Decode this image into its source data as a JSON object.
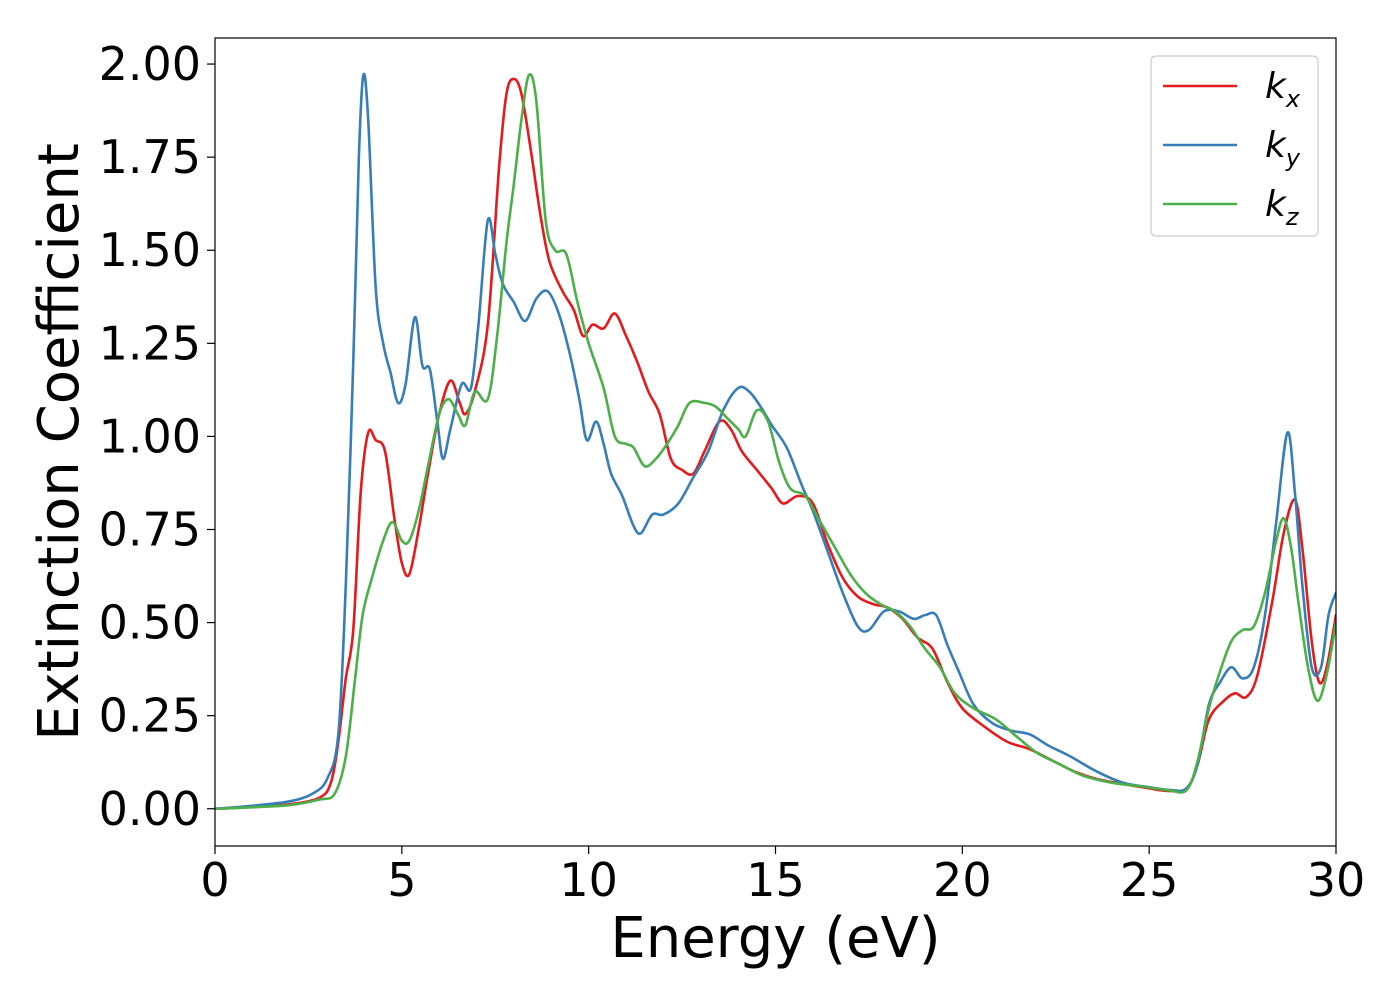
{
  "chart_data": {
    "type": "line",
    "title": "",
    "xlabel": "Energy (eV)",
    "ylabel": "Extinction Coefficient",
    "xlim": [
      0,
      30
    ],
    "ylim": [
      -0.1,
      2.07
    ],
    "xticks": [
      0,
      5,
      10,
      15,
      20,
      25,
      30
    ],
    "xtick_labels": [
      "0",
      "5",
      "10",
      "15",
      "20",
      "25",
      "30"
    ],
    "yticks": [
      0,
      0.25,
      0.5,
      0.75,
      1.0,
      1.25,
      1.5,
      1.75,
      2.0
    ],
    "ytick_labels": [
      "0.00",
      "0.25",
      "0.50",
      "0.75",
      "1.00",
      "1.25",
      "1.50",
      "1.75",
      "2.00"
    ],
    "grid": false,
    "legend_position": "top-right",
    "series": [
      {
        "name": "k",
        "subscript": "x",
        "color": "#e41a1c",
        "points": [
          [
            0,
            0
          ],
          [
            1,
            0.005
          ],
          [
            2,
            0.012
          ],
          [
            2.8,
            0.03
          ],
          [
            3.1,
            0.07
          ],
          [
            3.3,
            0.18
          ],
          [
            3.5,
            0.35
          ],
          [
            3.7,
            0.48
          ],
          [
            3.9,
            0.85
          ],
          [
            4.1,
            1.01
          ],
          [
            4.3,
            0.99
          ],
          [
            4.55,
            0.96
          ],
          [
            4.8,
            0.78
          ],
          [
            5.0,
            0.66
          ],
          [
            5.2,
            0.63
          ],
          [
            5.45,
            0.75
          ],
          [
            5.7,
            0.9
          ],
          [
            6.0,
            1.06
          ],
          [
            6.3,
            1.15
          ],
          [
            6.55,
            1.09
          ],
          [
            6.7,
            1.06
          ],
          [
            6.95,
            1.12
          ],
          [
            7.3,
            1.3
          ],
          [
            7.6,
            1.72
          ],
          [
            7.8,
            1.92
          ],
          [
            8.0,
            1.96
          ],
          [
            8.2,
            1.92
          ],
          [
            8.45,
            1.77
          ],
          [
            8.7,
            1.6
          ],
          [
            8.95,
            1.47
          ],
          [
            9.3,
            1.39
          ],
          [
            9.6,
            1.34
          ],
          [
            9.85,
            1.27
          ],
          [
            10.1,
            1.3
          ],
          [
            10.4,
            1.29
          ],
          [
            10.7,
            1.33
          ],
          [
            11.0,
            1.27
          ],
          [
            11.3,
            1.2
          ],
          [
            11.6,
            1.12
          ],
          [
            11.9,
            1.06
          ],
          [
            12.2,
            0.94
          ],
          [
            12.5,
            0.91
          ],
          [
            12.8,
            0.9
          ],
          [
            13.1,
            0.96
          ],
          [
            13.5,
            1.04
          ],
          [
            13.8,
            1.02
          ],
          [
            14.1,
            0.96
          ],
          [
            14.5,
            0.91
          ],
          [
            14.9,
            0.86
          ],
          [
            15.2,
            0.82
          ],
          [
            15.6,
            0.84
          ],
          [
            16.0,
            0.82
          ],
          [
            16.4,
            0.71
          ],
          [
            16.8,
            0.62
          ],
          [
            17.2,
            0.57
          ],
          [
            17.6,
            0.55
          ],
          [
            18.0,
            0.54
          ],
          [
            18.4,
            0.51
          ],
          [
            18.8,
            0.46
          ],
          [
            19.2,
            0.43
          ],
          [
            19.6,
            0.34
          ],
          [
            20.0,
            0.27
          ],
          [
            20.6,
            0.22
          ],
          [
            21.2,
            0.18
          ],
          [
            21.8,
            0.16
          ],
          [
            22.4,
            0.13
          ],
          [
            23.0,
            0.1
          ],
          [
            23.6,
            0.08
          ],
          [
            24.4,
            0.065
          ],
          [
            25.0,
            0.055
          ],
          [
            25.5,
            0.048
          ],
          [
            26.0,
            0.055
          ],
          [
            26.3,
            0.12
          ],
          [
            26.6,
            0.24
          ],
          [
            27.0,
            0.29
          ],
          [
            27.3,
            0.31
          ],
          [
            27.6,
            0.3
          ],
          [
            27.9,
            0.36
          ],
          [
            28.3,
            0.56
          ],
          [
            28.6,
            0.74
          ],
          [
            28.9,
            0.83
          ],
          [
            29.1,
            0.7
          ],
          [
            29.35,
            0.45
          ],
          [
            29.55,
            0.34
          ],
          [
            29.75,
            0.38
          ],
          [
            30.0,
            0.52
          ]
        ]
      },
      {
        "name": "k",
        "subscript": "y",
        "color": "#377eb8",
        "points": [
          [
            0,
            0
          ],
          [
            1,
            0.008
          ],
          [
            2,
            0.02
          ],
          [
            2.6,
            0.04
          ],
          [
            3.0,
            0.08
          ],
          [
            3.3,
            0.2
          ],
          [
            3.5,
            0.6
          ],
          [
            3.7,
            1.2
          ],
          [
            3.85,
            1.75
          ],
          [
            3.97,
            1.97
          ],
          [
            4.1,
            1.85
          ],
          [
            4.3,
            1.4
          ],
          [
            4.5,
            1.25
          ],
          [
            4.7,
            1.17
          ],
          [
            4.9,
            1.09
          ],
          [
            5.1,
            1.14
          ],
          [
            5.35,
            1.32
          ],
          [
            5.55,
            1.19
          ],
          [
            5.75,
            1.18
          ],
          [
            5.95,
            1.04
          ],
          [
            6.1,
            0.94
          ],
          [
            6.3,
            1.02
          ],
          [
            6.6,
            1.14
          ],
          [
            6.85,
            1.13
          ],
          [
            7.05,
            1.3
          ],
          [
            7.3,
            1.58
          ],
          [
            7.5,
            1.49
          ],
          [
            7.7,
            1.41
          ],
          [
            8.0,
            1.36
          ],
          [
            8.3,
            1.31
          ],
          [
            8.6,
            1.37
          ],
          [
            8.9,
            1.39
          ],
          [
            9.2,
            1.33
          ],
          [
            9.5,
            1.22
          ],
          [
            9.75,
            1.1
          ],
          [
            9.95,
            0.99
          ],
          [
            10.2,
            1.04
          ],
          [
            10.4,
            0.98
          ],
          [
            10.6,
            0.9
          ],
          [
            10.9,
            0.84
          ],
          [
            11.2,
            0.76
          ],
          [
            11.4,
            0.74
          ],
          [
            11.7,
            0.79
          ],
          [
            12.0,
            0.79
          ],
          [
            12.4,
            0.82
          ],
          [
            12.8,
            0.89
          ],
          [
            13.2,
            0.96
          ],
          [
            13.6,
            1.07
          ],
          [
            14.0,
            1.13
          ],
          [
            14.3,
            1.12
          ],
          [
            14.6,
            1.08
          ],
          [
            14.9,
            1.03
          ],
          [
            15.3,
            0.97
          ],
          [
            15.7,
            0.87
          ],
          [
            16.0,
            0.8
          ],
          [
            16.4,
            0.69
          ],
          [
            16.8,
            0.58
          ],
          [
            17.2,
            0.49
          ],
          [
            17.5,
            0.48
          ],
          [
            17.9,
            0.53
          ],
          [
            18.3,
            0.53
          ],
          [
            18.7,
            0.51
          ],
          [
            19.0,
            0.52
          ],
          [
            19.3,
            0.52
          ],
          [
            19.6,
            0.44
          ],
          [
            19.9,
            0.37
          ],
          [
            20.3,
            0.28
          ],
          [
            20.8,
            0.23
          ],
          [
            21.3,
            0.21
          ],
          [
            21.8,
            0.2
          ],
          [
            22.3,
            0.17
          ],
          [
            22.9,
            0.14
          ],
          [
            23.6,
            0.1
          ],
          [
            24.3,
            0.07
          ],
          [
            25.0,
            0.058
          ],
          [
            25.6,
            0.05
          ],
          [
            26.0,
            0.055
          ],
          [
            26.3,
            0.12
          ],
          [
            26.6,
            0.28
          ],
          [
            26.9,
            0.34
          ],
          [
            27.2,
            0.38
          ],
          [
            27.5,
            0.35
          ],
          [
            27.8,
            0.38
          ],
          [
            28.1,
            0.52
          ],
          [
            28.4,
            0.77
          ],
          [
            28.7,
            1.01
          ],
          [
            28.9,
            0.85
          ],
          [
            29.1,
            0.6
          ],
          [
            29.35,
            0.38
          ],
          [
            29.6,
            0.38
          ],
          [
            29.8,
            0.52
          ],
          [
            30.0,
            0.58
          ]
        ]
      },
      {
        "name": "k",
        "subscript": "z",
        "color": "#4daf4a",
        "points": [
          [
            0,
            0
          ],
          [
            1,
            0.004
          ],
          [
            2,
            0.01
          ],
          [
            2.8,
            0.025
          ],
          [
            3.2,
            0.04
          ],
          [
            3.5,
            0.14
          ],
          [
            3.75,
            0.35
          ],
          [
            3.95,
            0.52
          ],
          [
            4.2,
            0.62
          ],
          [
            4.5,
            0.72
          ],
          [
            4.75,
            0.77
          ],
          [
            5.0,
            0.72
          ],
          [
            5.2,
            0.72
          ],
          [
            5.45,
            0.8
          ],
          [
            5.7,
            0.92
          ],
          [
            6.0,
            1.06
          ],
          [
            6.25,
            1.1
          ],
          [
            6.5,
            1.06
          ],
          [
            6.7,
            1.03
          ],
          [
            6.95,
            1.12
          ],
          [
            7.3,
            1.1
          ],
          [
            7.55,
            1.27
          ],
          [
            7.8,
            1.52
          ],
          [
            8.0,
            1.68
          ],
          [
            8.2,
            1.85
          ],
          [
            8.4,
            1.97
          ],
          [
            8.6,
            1.9
          ],
          [
            8.85,
            1.58
          ],
          [
            9.1,
            1.5
          ],
          [
            9.4,
            1.49
          ],
          [
            9.7,
            1.36
          ],
          [
            10.0,
            1.25
          ],
          [
            10.4,
            1.13
          ],
          [
            10.7,
            1.0
          ],
          [
            11.0,
            0.98
          ],
          [
            11.2,
            0.97
          ],
          [
            11.5,
            0.92
          ],
          [
            11.8,
            0.94
          ],
          [
            12.1,
            0.98
          ],
          [
            12.4,
            1.03
          ],
          [
            12.7,
            1.09
          ],
          [
            13.1,
            1.09
          ],
          [
            13.4,
            1.08
          ],
          [
            13.7,
            1.05
          ],
          [
            14.0,
            1.02
          ],
          [
            14.2,
            1.0
          ],
          [
            14.5,
            1.07
          ],
          [
            14.8,
            1.04
          ],
          [
            15.1,
            0.93
          ],
          [
            15.4,
            0.86
          ],
          [
            15.8,
            0.84
          ],
          [
            16.2,
            0.77
          ],
          [
            16.6,
            0.7
          ],
          [
            17.0,
            0.63
          ],
          [
            17.4,
            0.58
          ],
          [
            17.8,
            0.55
          ],
          [
            18.2,
            0.53
          ],
          [
            18.6,
            0.49
          ],
          [
            19.0,
            0.43
          ],
          [
            19.4,
            0.38
          ],
          [
            19.8,
            0.31
          ],
          [
            20.3,
            0.27
          ],
          [
            20.9,
            0.24
          ],
          [
            21.5,
            0.19
          ],
          [
            22.0,
            0.15
          ],
          [
            22.6,
            0.12
          ],
          [
            23.2,
            0.09
          ],
          [
            24.0,
            0.07
          ],
          [
            24.8,
            0.06
          ],
          [
            25.5,
            0.05
          ],
          [
            26.0,
            0.05
          ],
          [
            26.3,
            0.13
          ],
          [
            26.6,
            0.27
          ],
          [
            26.9,
            0.37
          ],
          [
            27.2,
            0.45
          ],
          [
            27.5,
            0.48
          ],
          [
            27.8,
            0.49
          ],
          [
            28.1,
            0.58
          ],
          [
            28.4,
            0.72
          ],
          [
            28.6,
            0.78
          ],
          [
            28.8,
            0.7
          ],
          [
            29.0,
            0.55
          ],
          [
            29.25,
            0.38
          ],
          [
            29.5,
            0.29
          ],
          [
            29.75,
            0.36
          ],
          [
            30.0,
            0.5
          ]
        ]
      }
    ]
  }
}
